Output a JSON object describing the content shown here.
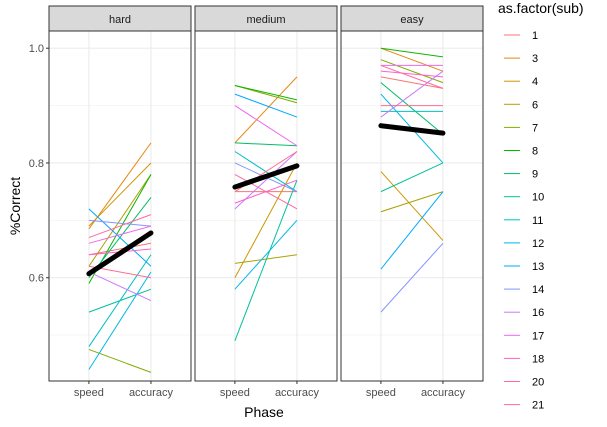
{
  "chart_data": {
    "type": "line",
    "xlabel": "Phase",
    "ylabel": "%Correct",
    "x_categories": [
      "speed",
      "accuracy"
    ],
    "ylim": [
      0.42,
      1.03
    ],
    "y_ticks": [
      "0.6",
      "0.8",
      "1.0"
    ],
    "grid": true,
    "legend": {
      "title": "as.factor(sub)",
      "placement": "right"
    },
    "panels": [
      {
        "label": "hard",
        "mean": [
          0.607,
          0.678
        ],
        "subjects": [
          {
            "name": "1",
            "color": "#F8766D",
            "values": [
              0.64,
              0.66
            ]
          },
          {
            "name": "3",
            "color": "#E68613",
            "values": [
              0.685,
              0.835
            ]
          },
          {
            "name": "4",
            "color": "#CD9600",
            "values": [
              0.69,
              0.8
            ]
          },
          {
            "name": "6",
            "color": "#ABA300",
            "values": [
              0.62,
              0.78
            ]
          },
          {
            "name": "7",
            "color": "#7CAE00",
            "values": [
              0.475,
              0.435
            ]
          },
          {
            "name": "8",
            "color": "#0CB702",
            "values": [
              0.59,
              0.78
            ]
          },
          {
            "name": "9",
            "color": "#00BE67",
            "values": [
              0.6,
              0.74
            ]
          },
          {
            "name": "10",
            "color": "#00C19A",
            "values": [
              0.54,
              0.58
            ]
          },
          {
            "name": "11",
            "color": "#00BFC4",
            "values": [
              0.48,
              0.64
            ]
          },
          {
            "name": "12",
            "color": "#00B8E7",
            "values": [
              0.44,
              0.61
            ]
          },
          {
            "name": "13",
            "color": "#00A9FF",
            "values": [
              0.72,
              0.62
            ]
          },
          {
            "name": "14",
            "color": "#8494FF",
            "values": [
              0.7,
              0.69
            ]
          },
          {
            "name": "16",
            "color": "#C77CFF",
            "values": [
              0.61,
              0.56
            ]
          },
          {
            "name": "17",
            "color": "#ED68ED",
            "values": [
              0.66,
              0.69
            ]
          },
          {
            "name": "18",
            "color": "#FF61CC",
            "values": [
              0.64,
              0.65
            ]
          },
          {
            "name": "20",
            "color": "#FF68A1",
            "values": [
              0.67,
              0.71
            ]
          },
          {
            "name": "21",
            "color": "#FF6C91",
            "values": [
              0.62,
              0.6
            ]
          }
        ]
      },
      {
        "label": "medium",
        "mean": [
          0.758,
          0.795
        ],
        "subjects": [
          {
            "name": "1",
            "color": "#F8766D",
            "values": [
              0.75,
              0.75
            ]
          },
          {
            "name": "3",
            "color": "#E68613",
            "values": [
              0.835,
              0.95
            ]
          },
          {
            "name": "4",
            "color": "#CD9600",
            "values": [
              0.6,
              0.8
            ]
          },
          {
            "name": "6",
            "color": "#ABA300",
            "values": [
              0.625,
              0.64
            ]
          },
          {
            "name": "7",
            "color": "#7CAE00",
            "values": [
              0.935,
              0.905
            ]
          },
          {
            "name": "8",
            "color": "#0CB702",
            "values": [
              0.935,
              0.91
            ]
          },
          {
            "name": "9",
            "color": "#00BE67",
            "values": [
              0.835,
              0.83
            ]
          },
          {
            "name": "10",
            "color": "#00C19A",
            "values": [
              0.49,
              0.77
            ]
          },
          {
            "name": "11",
            "color": "#00BFC4",
            "values": [
              0.82,
              0.75
            ]
          },
          {
            "name": "12",
            "color": "#00B8E7",
            "values": [
              0.58,
              0.7
            ]
          },
          {
            "name": "13",
            "color": "#00A9FF",
            "values": [
              0.92,
              0.88
            ]
          },
          {
            "name": "14",
            "color": "#8494FF",
            "values": [
              0.8,
              0.75
            ]
          },
          {
            "name": "16",
            "color": "#C77CFF",
            "values": [
              0.72,
              0.82
            ]
          },
          {
            "name": "17",
            "color": "#ED68ED",
            "values": [
              0.9,
              0.83
            ]
          },
          {
            "name": "18",
            "color": "#FF61CC",
            "values": [
              0.73,
              0.77
            ]
          },
          {
            "name": "20",
            "color": "#FF68A1",
            "values": [
              0.78,
              0.72
            ]
          },
          {
            "name": "21",
            "color": "#FF6C91",
            "values": [
              0.75,
              0.82
            ]
          }
        ]
      },
      {
        "label": "easy",
        "mean": [
          0.865,
          0.852
        ],
        "subjects": [
          {
            "name": "1",
            "color": "#F8766D",
            "values": [
              0.95,
              0.93
            ]
          },
          {
            "name": "3",
            "color": "#E68613",
            "values": [
              1.0,
              0.96
            ]
          },
          {
            "name": "4",
            "color": "#CD9600",
            "values": [
              0.785,
              0.665
            ]
          },
          {
            "name": "6",
            "color": "#ABA300",
            "values": [
              0.715,
              0.75
            ]
          },
          {
            "name": "7",
            "color": "#7CAE00",
            "values": [
              0.98,
              0.94
            ]
          },
          {
            "name": "8",
            "color": "#0CB702",
            "values": [
              1.0,
              0.985
            ]
          },
          {
            "name": "9",
            "color": "#00BE67",
            "values": [
              0.94,
              0.85
            ]
          },
          {
            "name": "10",
            "color": "#00C19A",
            "values": [
              0.75,
              0.8
            ]
          },
          {
            "name": "11",
            "color": "#00BFC4",
            "values": [
              0.89,
              0.89
            ]
          },
          {
            "name": "12",
            "color": "#00B8E7",
            "values": [
              0.92,
              0.8
            ]
          },
          {
            "name": "13",
            "color": "#00A9FF",
            "values": [
              0.615,
              0.75
            ]
          },
          {
            "name": "14",
            "color": "#8494FF",
            "values": [
              0.54,
              0.66
            ]
          },
          {
            "name": "16",
            "color": "#C77CFF",
            "values": [
              0.88,
              0.96
            ]
          },
          {
            "name": "17",
            "color": "#ED68ED",
            "values": [
              0.97,
              0.97
            ]
          },
          {
            "name": "18",
            "color": "#FF61CC",
            "values": [
              0.96,
              0.95
            ]
          },
          {
            "name": "20",
            "color": "#FF68A1",
            "values": [
              0.97,
              0.93
            ]
          },
          {
            "name": "21",
            "color": "#FF6C91",
            "values": [
              0.9,
              0.9
            ]
          }
        ]
      }
    ]
  }
}
